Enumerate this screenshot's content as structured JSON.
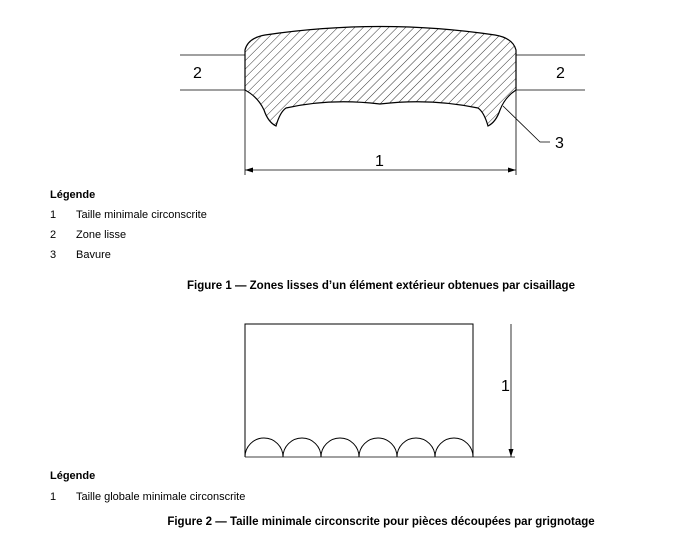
{
  "figure1": {
    "labels": {
      "zone_left": "2",
      "zone_right": "2",
      "width": "1",
      "burr": "3"
    },
    "legend_title": "Légende",
    "legend": [
      {
        "num": "1",
        "text": "Taille minimale circonscrite"
      },
      {
        "num": "2",
        "text": "Zone lisse"
      },
      {
        "num": "3",
        "text": "Bavure"
      }
    ],
    "caption": "Figure 1 — Zones lisses d’un élément extérieur obtenues par cisaillage"
  },
  "figure2": {
    "labels": {
      "height": "1"
    },
    "legend_title": "Légende",
    "legend": [
      {
        "num": "1",
        "text": "Taille globale minimale circonscrite"
      }
    ],
    "caption": "Figure 2 — Taille minimale circonscrite pour pièces découpées par grignotage"
  }
}
